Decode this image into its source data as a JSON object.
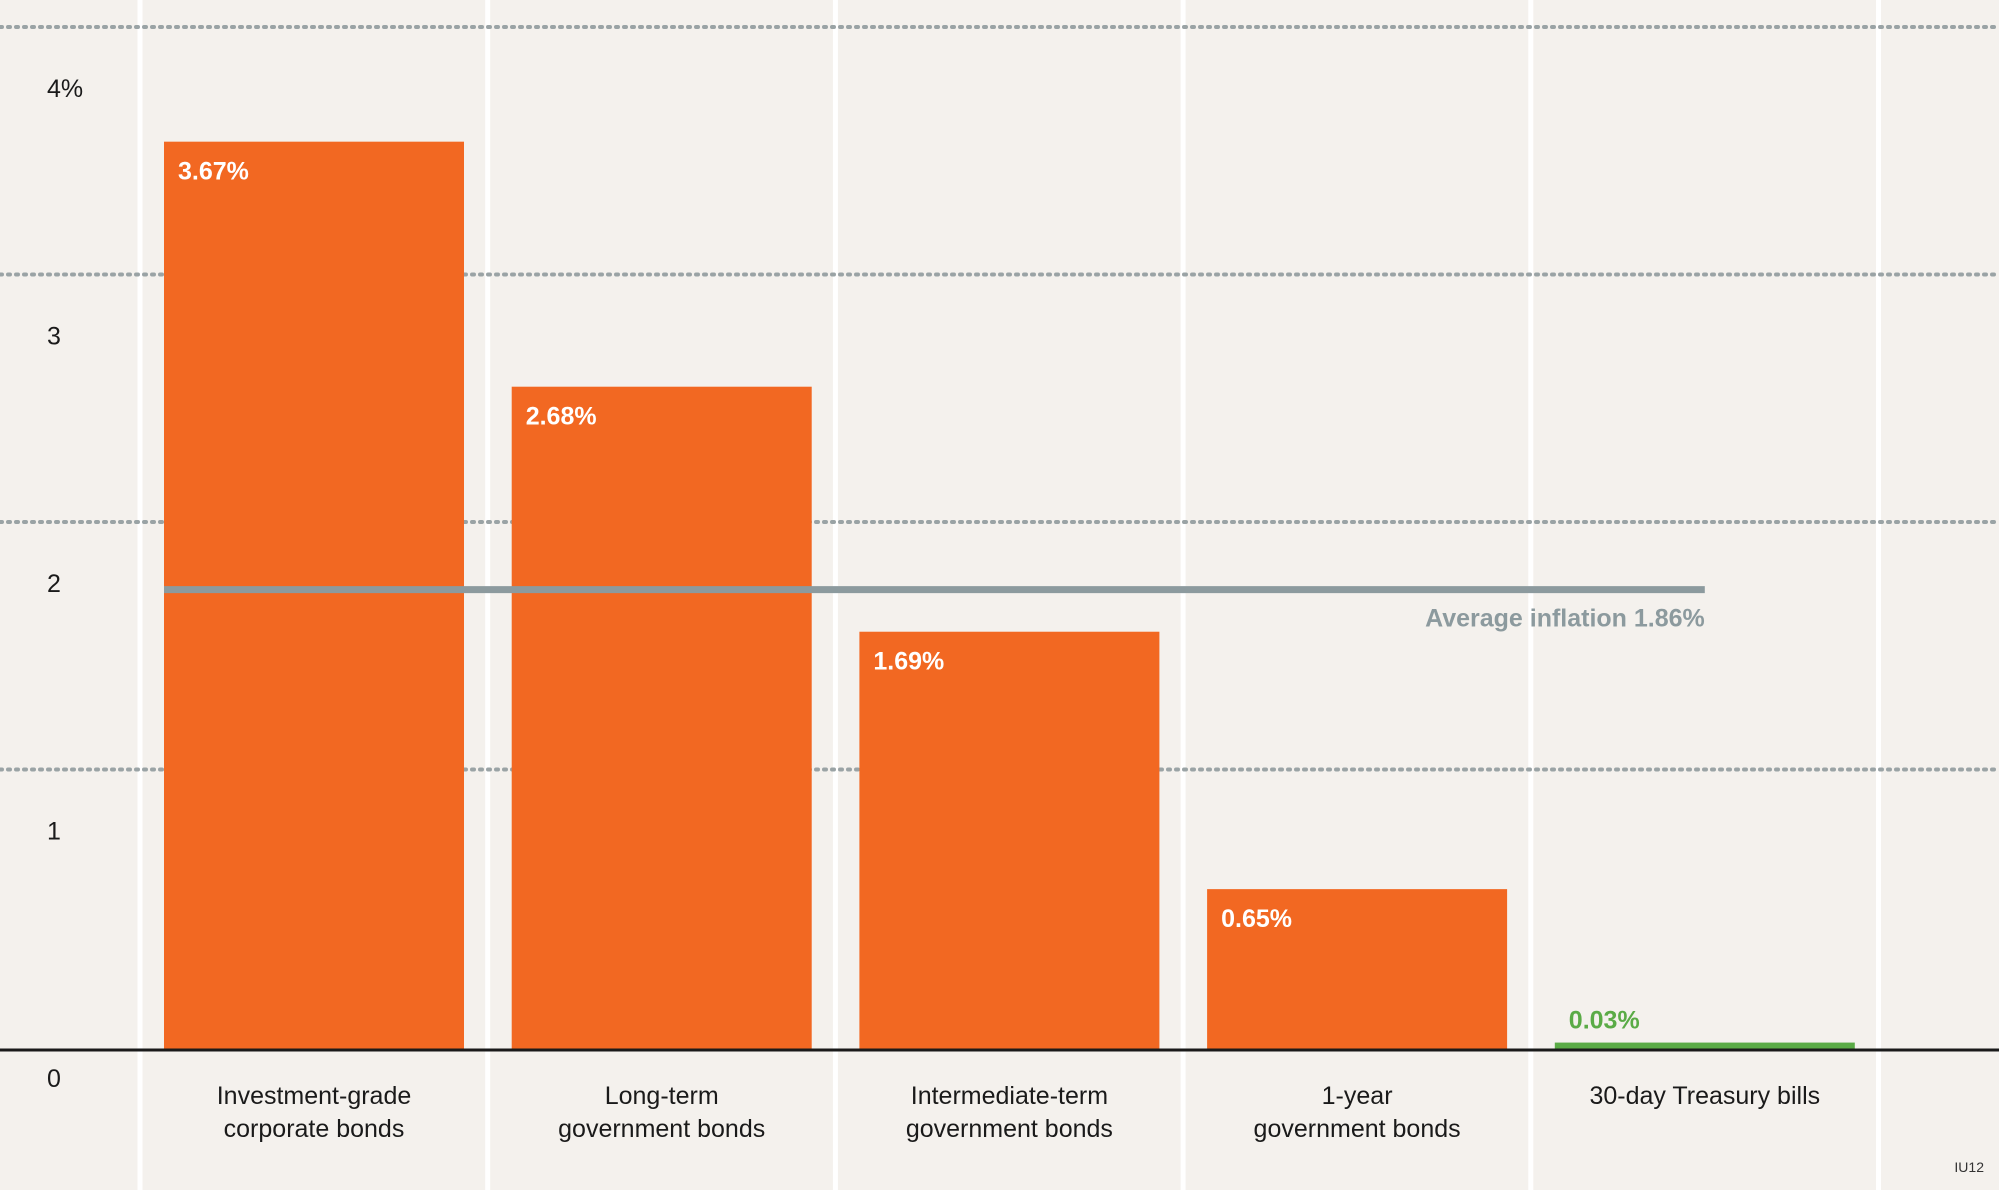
{
  "chart_data": {
    "type": "bar",
    "categories": [
      [
        "Investment-grade",
        "corporate bonds"
      ],
      [
        "Long-term",
        "government bonds"
      ],
      [
        "Intermediate-term",
        "government bonds"
      ],
      [
        "1-year",
        "government bonds"
      ],
      [
        "30-day Treasury bills"
      ]
    ],
    "values": [
      3.67,
      2.68,
      1.69,
      0.65,
      0.03
    ],
    "value_labels": [
      "3.67%",
      "2.68%",
      "1.69%",
      "0.65%",
      "0.03%"
    ],
    "ylim": [
      0,
      4
    ],
    "yticks": [
      0,
      1,
      2,
      3,
      4
    ],
    "ytick_labels": [
      "0",
      "1",
      "2",
      "3",
      "4%"
    ],
    "reference_line": {
      "value": 1.86,
      "label": "Average inflation 1.86%"
    },
    "grid": true,
    "colors": {
      "bar": "#f26822",
      "highlight_bar": "#5aab46",
      "reference": "#8c9a9e",
      "grid": "#9aa3a5",
      "background": "#f4f1ed",
      "column_divider": "#ffffff",
      "axis": "#1a1a1a",
      "label_on_bar": "#ffffff"
    },
    "highlight_index": 4,
    "footnote": "IU12"
  }
}
